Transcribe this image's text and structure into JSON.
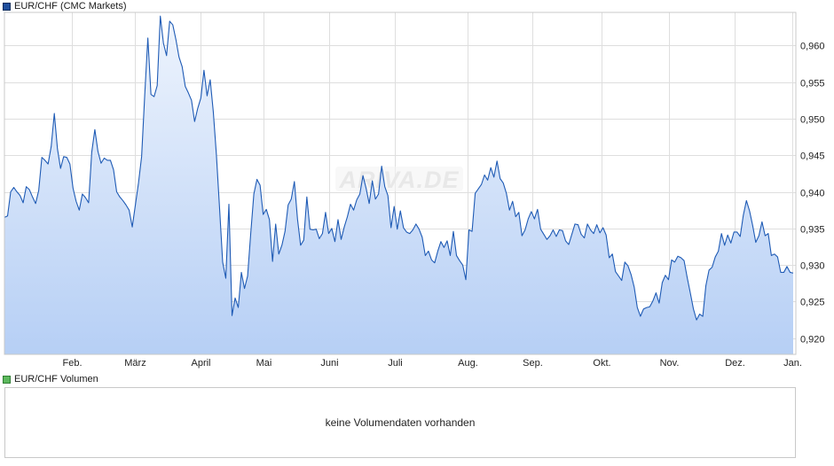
{
  "legend": {
    "price_label": "EUR/CHF (CMC Markets)",
    "price_color": "#1f4e9c",
    "volume_label": "EUR/CHF Volumen",
    "volume_color": "#5cb85c"
  },
  "watermark": "ARIVA.DE",
  "volume_panel": {
    "message": "keine Volumendaten vorhanden"
  },
  "chart_data": {
    "type": "area",
    "title": "EUR/CHF (CMC Markets)",
    "xlabel": "",
    "ylabel": "",
    "x_tick_labels": [
      "Feb.",
      "März",
      "April",
      "Mai",
      "Juni",
      "Juli",
      "Aug.",
      "Sep.",
      "Okt.",
      "Nov.",
      "Dez.",
      "Jan."
    ],
    "y_tick_labels": [
      "0,920",
      "0,925",
      "0,930",
      "0,935",
      "0,940",
      "0,945",
      "0,950",
      "0,955",
      "0,960"
    ],
    "y_ticks": [
      0.92,
      0.925,
      0.93,
      0.935,
      0.94,
      0.945,
      0.95,
      0.955,
      0.96
    ],
    "ylim": [
      0.9178,
      0.9645
    ],
    "grid": true,
    "line_color": "#1f5bb5",
    "fill_top_color": "#eef4fd",
    "fill_bottom_color": "#b6cff5",
    "series": [
      {
        "name": "EUR/CHF (CMC Markets)",
        "values": [
          0.9365,
          0.9367,
          0.94,
          0.9406,
          0.94,
          0.9395,
          0.9385,
          0.9407,
          0.9403,
          0.9393,
          0.9384,
          0.9402,
          0.9447,
          0.9443,
          0.9438,
          0.9462,
          0.9507,
          0.9459,
          0.9432,
          0.9448,
          0.9447,
          0.9438,
          0.9405,
          0.9387,
          0.9375,
          0.9397,
          0.9392,
          0.9385,
          0.9454,
          0.9485,
          0.9455,
          0.9439,
          0.9446,
          0.9443,
          0.9443,
          0.943,
          0.94,
          0.9393,
          0.9388,
          0.9382,
          0.9375,
          0.9352,
          0.9382,
          0.9412,
          0.9448,
          0.9532,
          0.961,
          0.9533,
          0.953,
          0.9545,
          0.964,
          0.9603,
          0.9586,
          0.9633,
          0.9628,
          0.9608,
          0.9584,
          0.9571,
          0.9544,
          0.9535,
          0.9525,
          0.9496,
          0.9514,
          0.9528,
          0.9566,
          0.9531,
          0.9553,
          0.9509,
          0.945,
          0.9378,
          0.9304,
          0.9282,
          0.9383,
          0.9231,
          0.9255,
          0.9242,
          0.929,
          0.9268,
          0.9285,
          0.9343,
          0.9397,
          0.9417,
          0.9409,
          0.9369,
          0.9376,
          0.9362,
          0.9305,
          0.9356,
          0.9315,
          0.9327,
          0.9346,
          0.9382,
          0.939,
          0.9414,
          0.9363,
          0.9327,
          0.9334,
          0.9393,
          0.9349,
          0.9348,
          0.9349,
          0.9336,
          0.9343,
          0.9372,
          0.9343,
          0.935,
          0.9332,
          0.9362,
          0.9335,
          0.9352,
          0.9366,
          0.9383,
          0.9375,
          0.9389,
          0.9397,
          0.9422,
          0.9405,
          0.9384,
          0.9415,
          0.939,
          0.9397,
          0.9435,
          0.9407,
          0.9395,
          0.9351,
          0.938,
          0.9349,
          0.9374,
          0.9351,
          0.9345,
          0.9343,
          0.9348,
          0.9356,
          0.9349,
          0.9338,
          0.9313,
          0.9319,
          0.9307,
          0.9303,
          0.9319,
          0.9332,
          0.9324,
          0.9333,
          0.9313,
          0.9346,
          0.9313,
          0.9306,
          0.93,
          0.928,
          0.9348,
          0.9346,
          0.9398,
          0.9404,
          0.941,
          0.9423,
          0.9416,
          0.9433,
          0.942,
          0.9442,
          0.9418,
          0.9412,
          0.9398,
          0.9375,
          0.9387,
          0.9366,
          0.9372,
          0.934,
          0.9348,
          0.9363,
          0.9373,
          0.9363,
          0.9376,
          0.9349,
          0.9342,
          0.9335,
          0.934,
          0.9348,
          0.9339,
          0.9348,
          0.9347,
          0.9333,
          0.9328,
          0.9342,
          0.9356,
          0.9355,
          0.9342,
          0.9337,
          0.9356,
          0.9348,
          0.9343,
          0.9355,
          0.9344,
          0.9351,
          0.9341,
          0.931,
          0.9315,
          0.9291,
          0.9285,
          0.9279,
          0.9304,
          0.9299,
          0.9287,
          0.927,
          0.9242,
          0.923,
          0.924,
          0.9242,
          0.9243,
          0.9251,
          0.9262,
          0.9248,
          0.9276,
          0.9286,
          0.928,
          0.9307,
          0.9304,
          0.9312,
          0.931,
          0.9306,
          0.9283,
          0.9262,
          0.924,
          0.9225,
          0.9233,
          0.923,
          0.9272,
          0.9293,
          0.9297,
          0.9311,
          0.9319,
          0.9343,
          0.9327,
          0.9341,
          0.933,
          0.9345,
          0.9345,
          0.9339,
          0.9368,
          0.9388,
          0.9374,
          0.9354,
          0.9331,
          0.934,
          0.9359,
          0.934,
          0.9343,
          0.9313,
          0.9315,
          0.9311,
          0.929,
          0.929,
          0.9298,
          0.929,
          0.9289
        ]
      }
    ]
  }
}
